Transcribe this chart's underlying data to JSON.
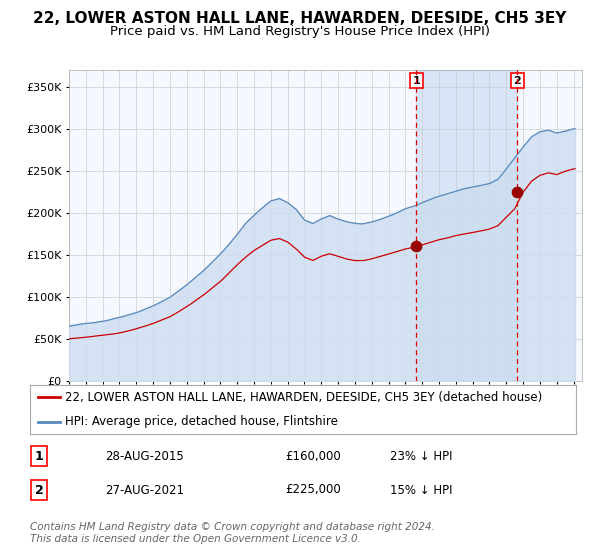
{
  "title": "22, LOWER ASTON HALL LANE, HAWARDEN, DEESIDE, CH5 3EY",
  "subtitle": "Price paid vs. HM Land Registry's House Price Index (HPI)",
  "legend_property": "22, LOWER ASTON HALL LANE, HAWARDEN, DEESIDE, CH5 3EY (detached house)",
  "legend_hpi": "HPI: Average price, detached house, Flintshire",
  "transaction1_date": "28-AUG-2015",
  "transaction1_price": "£160,000",
  "transaction1_note": "23% ↓ HPI",
  "transaction1_year": 2015.66,
  "transaction1_value": 160000,
  "transaction2_date": "27-AUG-2021",
  "transaction2_price": "£225,000",
  "transaction2_note": "15% ↓ HPI",
  "transaction2_year": 2021.66,
  "transaction2_value": 225000,
  "ylabel_ticks": [
    "£0",
    "£50K",
    "£100K",
    "£150K",
    "£200K",
    "£250K",
    "£300K",
    "£350K"
  ],
  "ytick_values": [
    0,
    50000,
    100000,
    150000,
    200000,
    250000,
    300000,
    350000
  ],
  "xmin": 1995,
  "xmax": 2025.5,
  "ymin": 0,
  "ymax": 370000,
  "property_color": "#cc0000",
  "hpi_color": "#5588bb",
  "hpi_fill_color": "#ccddf0",
  "vline_color": "#dd0000",
  "grid_color": "#cccccc",
  "background_color": "#ffffff",
  "plot_bg_color": "#f5f8ff",
  "footer_text": "Contains HM Land Registry data © Crown copyright and database right 2024.\nThis data is licensed under the Open Government Licence v3.0.",
  "title_fontsize": 11,
  "subtitle_fontsize": 9.5,
  "tick_fontsize": 8,
  "legend_fontsize": 8.5,
  "footer_fontsize": 7.5
}
